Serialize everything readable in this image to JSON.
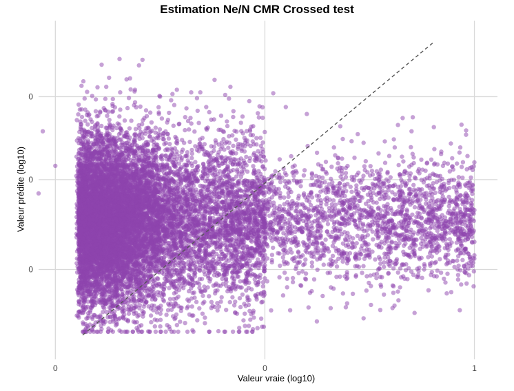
{
  "chart_data": {
    "type": "scatter",
    "title": "Estimation Ne/N CMR Crossed test",
    "xlabel": "Valeur vraie (log10)",
    "ylabel": "Valeur prédite (log10)",
    "xlim": [
      -0.04,
      1.055
    ],
    "ylim": [
      -0.76,
      0.22
    ],
    "x_ticks": [
      0,
      0.5,
      1
    ],
    "x_tick_labels": [
      "0",
      "0",
      "1"
    ],
    "y_ticks": [
      -0.5,
      -0.24,
      0
    ],
    "y_tick_labels": [
      "0",
      "0",
      "0"
    ],
    "grid": true,
    "reference_line": {
      "style": "dashed",
      "color": "#555555",
      "from": [
        0.065,
        -0.69
      ],
      "to": [
        0.905,
        0.16
      ]
    },
    "point_color": "#8e44ad",
    "point_alpha": 0.5,
    "series": [
      {
        "n_points": 12000,
        "x_mode": 0.06,
        "y_center": -0.36,
        "points": [
          [
            0.17,
            0.05
          ],
          [
            0.12,
            -0.04
          ],
          [
            0.19,
            0.02
          ],
          [
            0.25,
            0.0
          ],
          [
            0.07,
            -0.1
          ],
          [
            0.52,
            0.01
          ],
          [
            0.55,
            -0.03
          ],
          [
            0.6,
            -0.05
          ],
          [
            0.48,
            -0.12
          ],
          [
            0.4,
            -0.1
          ],
          [
            0.36,
            -0.03
          ],
          [
            0.29,
            0.02
          ],
          [
            0.85,
            -0.1
          ],
          [
            0.98,
            -0.11
          ],
          [
            1.0,
            -0.19
          ],
          [
            0.95,
            -0.33
          ],
          [
            0.99,
            -0.36
          ],
          [
            1.0,
            -0.42
          ],
          [
            0.99,
            -0.47
          ],
          [
            0.96,
            -0.5
          ],
          [
            0.91,
            -0.52
          ],
          [
            0.88,
            -0.5
          ],
          [
            0.8,
            -0.45
          ],
          [
            0.72,
            -0.49
          ],
          [
            0.65,
            -0.51
          ],
          [
            0.6,
            -0.45
          ],
          [
            0.47,
            -0.68
          ],
          [
            0.0,
            -0.2
          ],
          [
            -0.03,
            -0.1
          ],
          [
            -0.04,
            -0.28
          ],
          [
            0.3,
            -0.62
          ],
          [
            0.12,
            -0.6
          ]
        ]
      }
    ]
  }
}
